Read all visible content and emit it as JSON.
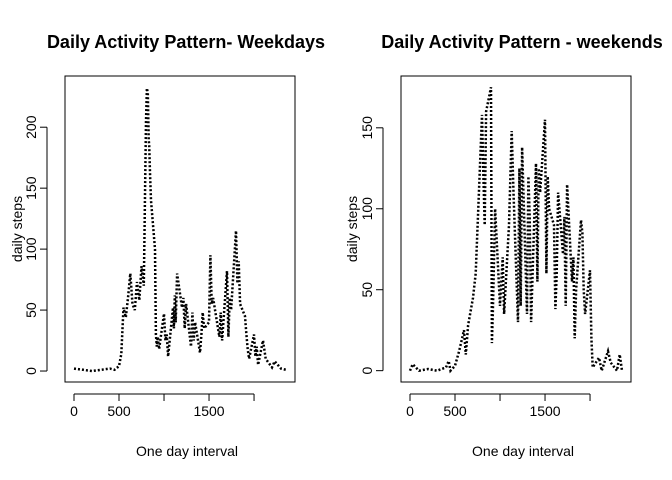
{
  "chart_data": [
    {
      "type": "line",
      "title": "Daily Activity Pattern- Weekdays",
      "xlabel": "One day interval",
      "ylabel": "daily steps",
      "x_ticks": [
        0,
        500,
        1500
      ],
      "y_ticks": [
        0,
        50,
        100,
        150,
        200
      ],
      "xlim": [
        -100,
        2455
      ],
      "ylim": [
        -9,
        242
      ],
      "line_style": "dotted",
      "line_color": "#000000",
      "series": [
        {
          "x": [
            0,
            100,
            200,
            300,
            400,
            450,
            500,
            525,
            550,
            575,
            600,
            625,
            650,
            675,
            700,
            725,
            750,
            775,
            800,
            810,
            820,
            830,
            835,
            845,
            855,
            900,
            910,
            920,
            930,
            945,
            1000,
            1015,
            1030,
            1045,
            1100,
            1110,
            1120,
            1130,
            1145,
            1200,
            1215,
            1230,
            1245,
            1300,
            1315,
            1330,
            1345,
            1400,
            1415,
            1430,
            1445,
            1500,
            1515,
            1530,
            1545,
            1600,
            1615,
            1630,
            1645,
            1700,
            1715,
            1730,
            1745,
            1800,
            1815,
            1830,
            1845,
            1900,
            1915,
            1930,
            1945,
            2000,
            2015,
            2030,
            2045,
            2100,
            2130,
            2200,
            2230,
            2300,
            2355
          ],
          "y": [
            2,
            1,
            0,
            1,
            2,
            1,
            4,
            14,
            52,
            44,
            60,
            80,
            55,
            50,
            73,
            58,
            86,
            70,
            205,
            232,
            228,
            190,
            185,
            160,
            140,
            100,
            30,
            20,
            28,
            18,
            47,
            25,
            30,
            12,
            52,
            35,
            62,
            40,
            80,
            52,
            60,
            35,
            55,
            20,
            48,
            25,
            40,
            15,
            30,
            48,
            35,
            40,
            95,
            55,
            60,
            35,
            28,
            48,
            25,
            82,
            28,
            60,
            50,
            115,
            72,
            90,
            55,
            45,
            30,
            18,
            10,
            30,
            12,
            20,
            5,
            25,
            10,
            3,
            8,
            2,
            1
          ]
        }
      ]
    },
    {
      "type": "line",
      "title": "Daily Activity Pattern - weekends",
      "xlabel": "One day interval",
      "ylabel": "daily steps",
      "x_ticks": [
        0,
        500,
        1500
      ],
      "y_ticks": [
        0,
        50,
        100,
        150
      ],
      "xlim": [
        -100,
        2455
      ],
      "ylim": [
        -7,
        182
      ],
      "line_style": "dotted",
      "line_color": "#000000",
      "series": [
        {
          "x": [
            0,
            30,
            100,
            200,
            300,
            400,
            430,
            450,
            500,
            545,
            600,
            620,
            645,
            700,
            730,
            800,
            815,
            830,
            845,
            900,
            910,
            920,
            930,
            945,
            1000,
            1030,
            1045,
            1100,
            1130,
            1150,
            1200,
            1215,
            1230,
            1245,
            1300,
            1315,
            1330,
            1345,
            1400,
            1415,
            1430,
            1445,
            1500,
            1515,
            1530,
            1545,
            1600,
            1615,
            1630,
            1645,
            1700,
            1715,
            1730,
            1745,
            1800,
            1815,
            1830,
            1845,
            1900,
            1915,
            1930,
            1945,
            2000,
            2015,
            2030,
            2100,
            2130,
            2200,
            2230,
            2300,
            2330,
            2355
          ],
          "y": [
            0,
            4,
            0,
            1,
            0,
            2,
            6,
            0,
            3,
            12,
            25,
            10,
            28,
            45,
            60,
            158,
            120,
            90,
            160,
            175,
            17,
            35,
            60,
            100,
            40,
            70,
            35,
            90,
            148,
            110,
            30,
            125,
            40,
            138,
            35,
            120,
            95,
            30,
            128,
            55,
            125,
            110,
            155,
            60,
            120,
            100,
            90,
            38,
            60,
            110,
            72,
            95,
            40,
            115,
            55,
            70,
            20,
            50,
            93,
            85,
            50,
            35,
            62,
            20,
            2,
            8,
            0,
            12,
            5,
            0,
            10,
            0
          ]
        }
      ]
    }
  ]
}
